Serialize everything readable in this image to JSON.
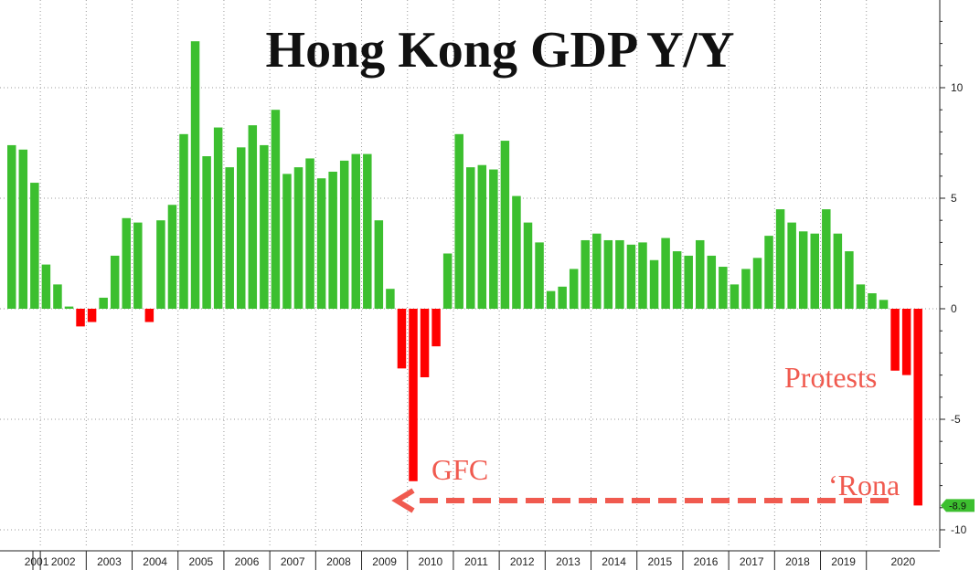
{
  "chart_data": {
    "type": "bar",
    "title": "Hong Kong GDP Y/Y",
    "xlabel": "",
    "ylabel": "",
    "ylim": [
      -10.5,
      14
    ],
    "y_ticks": [
      10,
      5,
      0,
      -5,
      -10
    ],
    "y_axis_side": "right",
    "grid": true,
    "years": [
      "2001",
      "2002",
      "2003",
      "2004",
      "2005",
      "2006",
      "2007",
      "2008",
      "2009",
      "2010",
      "2011",
      "2012",
      "2013",
      "2014",
      "2015",
      "2016",
      "2017",
      "2018",
      "2019",
      "2020"
    ],
    "series": [
      {
        "values": [
          7.4,
          7.2,
          5.7,
          2.0,
          1.1,
          0.1,
          -0.8,
          -0.6,
          0.5,
          2.4,
          4.1,
          3.9,
          -0.6,
          4.0,
          4.7,
          7.9,
          12.1,
          6.9,
          8.2,
          6.4,
          7.3,
          8.3,
          7.4,
          9.0,
          6.1,
          6.4,
          6.8,
          5.9,
          6.2,
          6.7,
          7.0,
          7.0,
          4.0,
          0.9,
          -2.7,
          -7.8,
          -3.1,
          -1.7,
          2.5,
          7.9,
          6.4,
          6.5,
          6.3,
          7.6,
          5.1,
          3.9,
          3.0,
          0.8,
          1.0,
          1.8,
          3.1,
          3.4,
          3.1,
          3.1,
          2.9,
          3.0,
          2.2,
          3.2,
          2.6,
          2.4,
          3.1,
          2.4,
          1.9,
          1.1,
          1.8,
          2.3,
          3.3,
          4.5,
          3.9,
          3.5,
          3.4,
          4.5,
          3.4,
          2.6,
          1.1,
          0.7,
          0.4,
          -2.8,
          -3.0,
          -8.9
        ]
      }
    ],
    "last_value_label": "-8.9",
    "positive_color": "#3cbf2f",
    "negative_color": "#ff0000",
    "annotations": {
      "gfc": "GFC",
      "protests": "Protests",
      "rona": "‘Rona"
    },
    "annotation_color": "#f05a4f"
  }
}
